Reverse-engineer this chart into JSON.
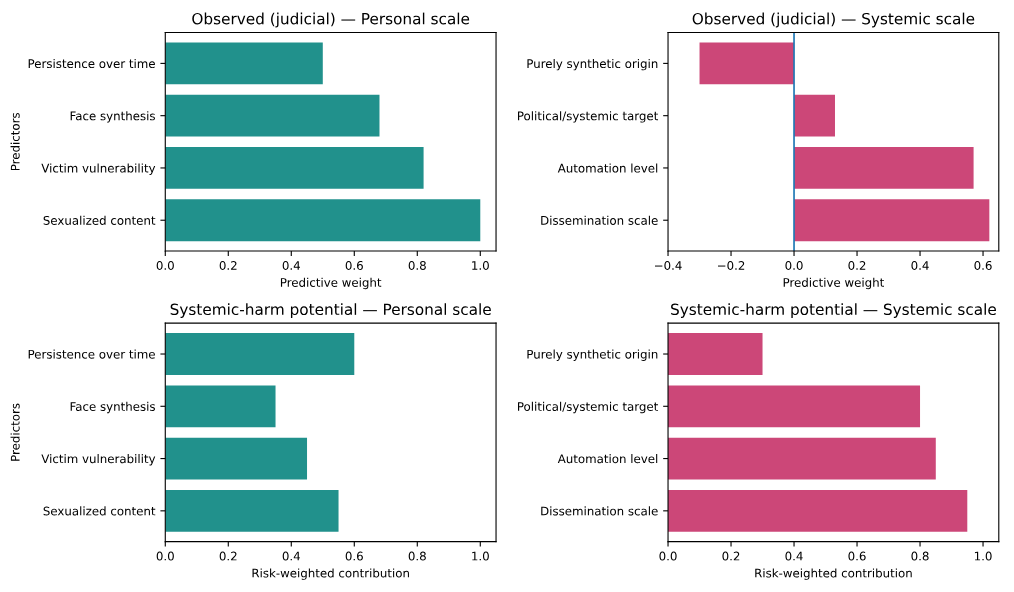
{
  "chart_data": [
    {
      "type": "bar",
      "orientation": "horizontal",
      "title": "Observed (judicial) — Personal scale",
      "xlabel": "Predictive weight",
      "ylabel": "Predictors",
      "categories": [
        "Persistence over time",
        "Face synthesis",
        "Victim vulnerability",
        "Sexualized content"
      ],
      "values": [
        0.5,
        0.68,
        0.82,
        1.0
      ],
      "color": "#21918c",
      "xlim": [
        0,
        1.05
      ],
      "xticks": [
        {
          "value": 0,
          "label": "0.0"
        },
        0.2,
        0.4,
        0.6,
        0.8,
        {
          "value": 1,
          "label": "1.0"
        }
      ],
      "grid": false,
      "legend": false
    },
    {
      "type": "bar",
      "orientation": "horizontal",
      "title": "Observed (judicial) — Systemic scale",
      "xlabel": "Predictive weight",
      "categories": [
        "Purely synthetic origin",
        "Political/systemic target",
        "Automation level",
        "Dissemination scale"
      ],
      "values": [
        -0.3,
        0.13,
        0.57,
        0.62
      ],
      "color": "#cc4778",
      "xlim": [
        -0.4,
        0.65
      ],
      "xticks": [
        {
          "value": -0.4,
          "label": "−0.4"
        },
        {
          "value": -0.2,
          "label": "−0.2"
        },
        {
          "value": 0,
          "label": "0.0"
        },
        0.2,
        0.4,
        0.6
      ],
      "grid": false,
      "legend": false,
      "ref_lines": [
        {
          "axis": "x",
          "value": 0,
          "color": "#1f77b4",
          "line_style": "solid"
        }
      ]
    },
    {
      "type": "bar",
      "orientation": "horizontal",
      "title": "Systemic-harm potential — Personal scale",
      "xlabel": "Risk-weighted contribution",
      "ylabel": "Predictors",
      "categories": [
        "Persistence over time",
        "Face synthesis",
        "Victim vulnerability",
        "Sexualized content"
      ],
      "values": [
        0.6,
        0.35,
        0.45,
        0.55
      ],
      "color": "#21918c",
      "xlim": [
        0,
        1.05
      ],
      "xticks": [
        {
          "value": 0,
          "label": "0.0"
        },
        0.2,
        0.4,
        0.6,
        0.8,
        {
          "value": 1,
          "label": "1.0"
        }
      ],
      "grid": false,
      "legend": false
    },
    {
      "type": "bar",
      "orientation": "horizontal",
      "title": "Systemic-harm potential — Systemic scale",
      "xlabel": "Risk-weighted contribution",
      "categories": [
        "Purely synthetic origin",
        "Political/systemic target",
        "Automation level",
        "Dissemination scale"
      ],
      "values": [
        0.3,
        0.8,
        0.85,
        0.95
      ],
      "color": "#cc4778",
      "xlim": [
        0,
        1.05
      ],
      "xticks": [
        {
          "value": 0,
          "label": "0.0"
        },
        0.2,
        0.4,
        0.6,
        0.8,
        {
          "value": 1,
          "label": "1.0"
        }
      ],
      "grid": false,
      "legend": false
    }
  ]
}
